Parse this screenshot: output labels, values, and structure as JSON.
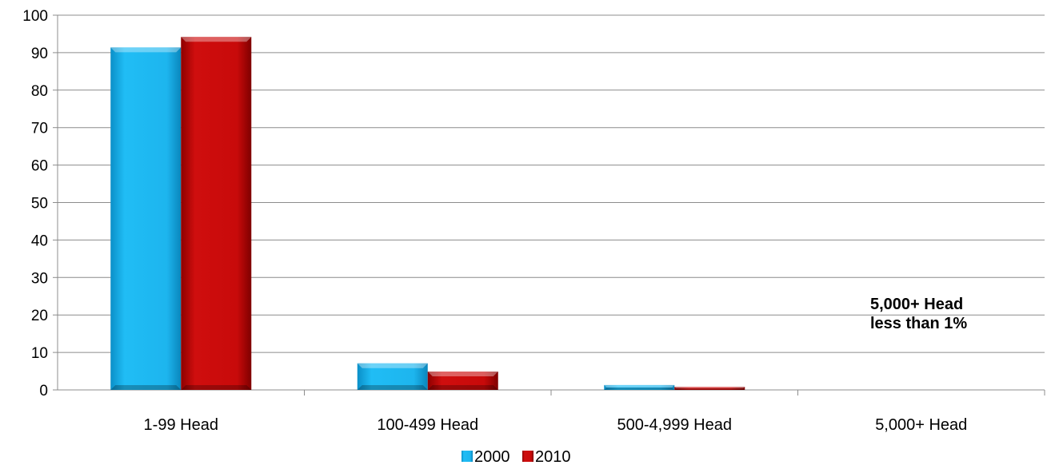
{
  "chart_data": {
    "type": "bar",
    "categories": [
      "1-99 Head",
      "100-499 Head",
      "500-4,999 Head",
      "5,000+ Head"
    ],
    "series": [
      {
        "name": "2000",
        "values": [
          91.4,
          7.1,
          1.3,
          0.2
        ],
        "color": "#1EB6F0"
      },
      {
        "name": "2010",
        "values": [
          94.2,
          4.9,
          0.8,
          0.1
        ],
        "color": "#C80A0A"
      }
    ],
    "ylim": [
      0,
      100
    ],
    "yticks": [
      "0",
      "10",
      "20",
      "30",
      "40",
      "50",
      "60",
      "70",
      "80",
      "90",
      "100"
    ],
    "grid": true,
    "legend_position": "bottom",
    "annotation": {
      "lines": [
        "5,000+ Head",
        "less than 1%"
      ]
    }
  }
}
